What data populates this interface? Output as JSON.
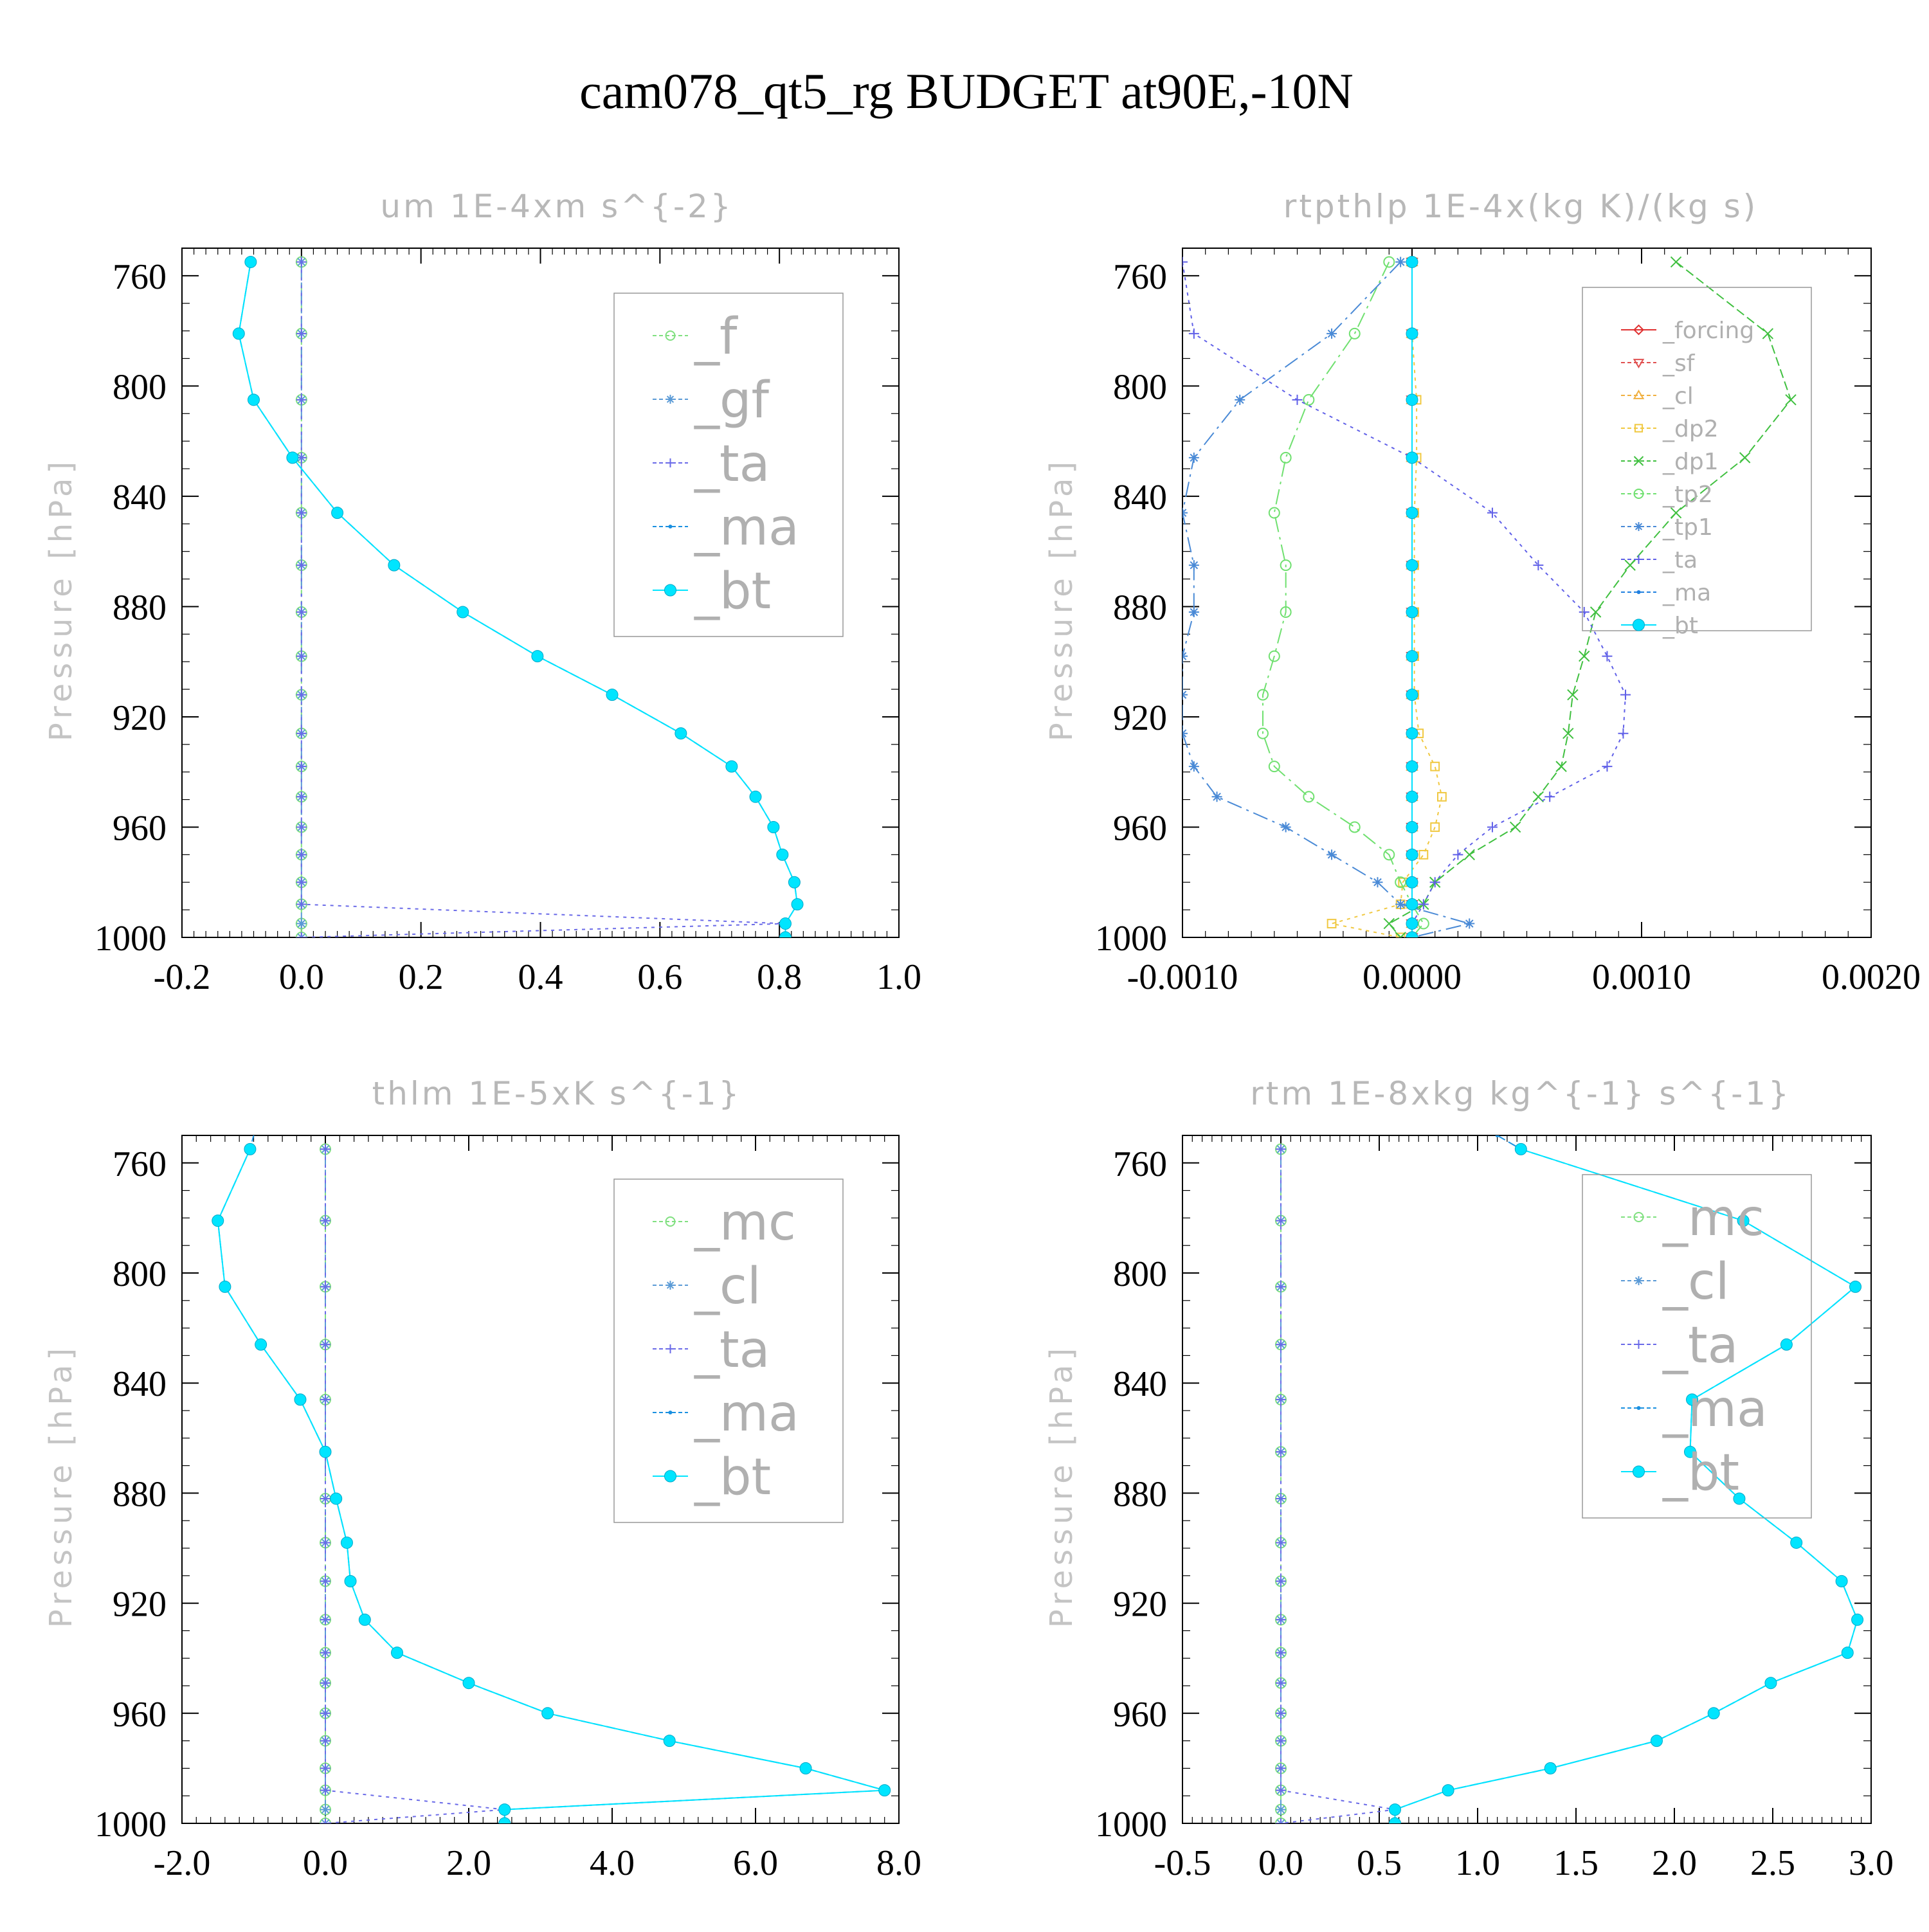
{
  "title": "cam078_qt5_rg  BUDGET at90E,-10N",
  "chart_data": [
    {
      "type": "line",
      "title": "um  1E-4xm s^{-2}",
      "ylabel": "Pressure [hPa]",
      "xlabel": "",
      "xlim": [
        -0.2,
        1.0
      ],
      "ylim": [
        1000,
        750
      ],
      "y_reversed": true,
      "x_ticks": [
        -0.2,
        0.0,
        0.2,
        0.4,
        0.6,
        0.8,
        1.0
      ],
      "x_tick_labels": [
        "-0.2",
        "0.0",
        "0.2",
        "0.4",
        "0.6",
        "0.8",
        "1.0"
      ],
      "y_ticks": [
        760,
        800,
        840,
        880,
        920,
        960,
        1000
      ],
      "y_tick_labels": [
        "760",
        "800",
        "840",
        "880",
        "920",
        "960",
        "1000"
      ],
      "legend_position": "top-right",
      "pressure": [
        755,
        781,
        805,
        826,
        846,
        865,
        882,
        898,
        912,
        926,
        938,
        949,
        960,
        970,
        980,
        988,
        995,
        1000
      ],
      "series": [
        {
          "name": "_f",
          "color": "#80e080",
          "marker": "circle-open",
          "dash": "10 7",
          "values": [
            0,
            0,
            0,
            0,
            0,
            0,
            0,
            0,
            0,
            0,
            0,
            0,
            0,
            0,
            0,
            0,
            0,
            0
          ]
        },
        {
          "name": "_gf",
          "color": "#5a9ad6",
          "marker": "asterisk",
          "dash": "24 8 4 8",
          "values": [
            0,
            0,
            0,
            0,
            0,
            0,
            0,
            0,
            0,
            0,
            0,
            0,
            0,
            0,
            0,
            0,
            0,
            0
          ]
        },
        {
          "name": "_ta",
          "color": "#6a6ae8",
          "marker": "plus",
          "dash": "5 7",
          "values": [
            0,
            0,
            0,
            0,
            0,
            0,
            0,
            0,
            0,
            0,
            0,
            0,
            0,
            0,
            0,
            0,
            0.81,
            0
          ]
        },
        {
          "name": "_ma",
          "color": "#1a90e0",
          "marker": "dot",
          "dash": "14 6",
          "values": [
            -0.085,
            -0.105,
            -0.08,
            -0.015,
            0.06,
            0.155,
            0.27,
            0.395,
            0.52,
            0.635,
            0.72,
            0.76,
            0.79,
            0.805,
            0.825,
            0.83,
            0.81,
            0.81
          ]
        },
        {
          "name": "_bt",
          "color": "#00e5ff",
          "marker": "filled-circle",
          "dash": "",
          "values": [
            -0.085,
            -0.105,
            -0.08,
            -0.015,
            0.06,
            0.155,
            0.27,
            0.395,
            0.52,
            0.635,
            0.72,
            0.76,
            0.79,
            0.805,
            0.825,
            0.83,
            0.81,
            0.81
          ]
        }
      ]
    },
    {
      "type": "line",
      "title": "rtpthlp  1E-4x(kg K)/(kg s)",
      "ylabel": "Pressure [hPa]",
      "xlabel": "",
      "xlim": [
        -0.001,
        0.002
      ],
      "ylim": [
        1000,
        750
      ],
      "y_reversed": true,
      "x_ticks": [
        -0.001,
        0.0,
        0.001,
        0.002
      ],
      "x_tick_labels": [
        "-0.0010",
        "0.0000",
        "0.0010",
        "0.0020"
      ],
      "y_ticks": [
        760,
        800,
        840,
        880,
        920,
        960,
        1000
      ],
      "y_tick_labels": [
        "760",
        "800",
        "840",
        "880",
        "920",
        "960",
        "1000"
      ],
      "legend_position": "top-right",
      "pressure": [
        755,
        781,
        805,
        826,
        846,
        865,
        882,
        898,
        912,
        926,
        938,
        949,
        960,
        970,
        980,
        988,
        995,
        1000
      ],
      "series": [
        {
          "name": "_forcing",
          "color": "#e03030",
          "marker": "diamond-open",
          "dash": "",
          "values": [
            0,
            0,
            0,
            0,
            0,
            0,
            0,
            0,
            0,
            0,
            0,
            0,
            0,
            0,
            0,
            0,
            0,
            0
          ]
        },
        {
          "name": "_sf",
          "color": "#e05050",
          "marker": "triangle-down",
          "dash": "10 7",
          "values": [
            0,
            0,
            0,
            0,
            0,
            0,
            0,
            0,
            0,
            0,
            0,
            0,
            0,
            0,
            0,
            0,
            0,
            0
          ]
        },
        {
          "name": "_cl",
          "color": "#f0b040",
          "marker": "triangle-up",
          "dash": "24 8 4 8",
          "values": [
            0,
            0,
            0,
            0,
            0,
            0,
            0,
            0,
            0,
            0,
            0,
            0,
            0,
            0,
            0,
            0,
            0,
            0
          ]
        },
        {
          "name": "_dp2",
          "color": "#f0c840",
          "marker": "square-open",
          "dash": "5 7",
          "values": [
            0,
            0,
            2e-05,
            2e-05,
            1e-05,
            1e-05,
            1e-05,
            1e-05,
            1e-05,
            3e-05,
            0.0001,
            0.00013,
            0.0001,
            5e-05,
            -4e-05,
            -5e-05,
            -0.00035,
            -5e-05
          ]
        },
        {
          "name": "_dp1",
          "color": "#40c040",
          "marker": "x",
          "dash": "14 6",
          "values": [
            0.00115,
            0.00155,
            0.00165,
            0.00145,
            0.00115,
            0.00095,
            0.0008,
            0.00075,
            0.0007,
            0.00068,
            0.00065,
            0.00055,
            0.00045,
            0.00025,
            0.0001,
            5e-05,
            -0.0001,
            -5e-05
          ]
        },
        {
          "name": "_tp2",
          "color": "#70e070",
          "marker": "circle-open",
          "dash": "24 8 4 8",
          "values": [
            -0.0001,
            -0.00025,
            -0.00045,
            -0.00055,
            -0.0006,
            -0.00055,
            -0.00055,
            -0.0006,
            -0.00065,
            -0.00065,
            -0.0006,
            -0.00045,
            -0.00025,
            -0.0001,
            -5e-05,
            0,
            5e-05,
            0
          ]
        },
        {
          "name": "_tp1",
          "color": "#4a8ad6",
          "marker": "asterisk",
          "dash": "24 8 4 8",
          "values": [
            -5e-05,
            -0.00035,
            -0.00075,
            -0.00095,
            -0.001,
            -0.00095,
            -0.00095,
            -0.001,
            -0.001,
            -0.001,
            -0.00095,
            -0.00085,
            -0.00055,
            -0.00035,
            -0.00015,
            -5e-05,
            0.00025,
            0
          ]
        },
        {
          "name": "_ta",
          "color": "#6060e8",
          "marker": "plus",
          "dash": "5 7",
          "values": [
            -0.001,
            -0.00095,
            -0.0005,
            0,
            0.00035,
            0.00055,
            0.00075,
            0.00085,
            0.00093,
            0.00092,
            0.00085,
            0.0006,
            0.00035,
            0.0002,
            0.0001,
            5e-05,
            0,
            0
          ]
        },
        {
          "name": "_ma",
          "color": "#2080e0",
          "marker": "dot",
          "dash": "14 6",
          "values": [
            0,
            0,
            0,
            0,
            0,
            0,
            0,
            0,
            0,
            0,
            0,
            0,
            0,
            0,
            0,
            0,
            0,
            0
          ]
        },
        {
          "name": "_bt",
          "color": "#00e0ff",
          "marker": "filled-circle",
          "dash": "",
          "values": [
            0,
            0,
            0,
            0,
            0,
            0,
            0,
            0,
            0,
            0,
            0,
            0,
            0,
            0,
            0,
            0,
            0,
            0
          ]
        }
      ]
    },
    {
      "type": "line",
      "title": "thlm  1E-5xK s^{-1}",
      "ylabel": "Pressure [hPa]",
      "xlabel": "",
      "xlim": [
        -2.0,
        8.0
      ],
      "ylim": [
        1000,
        750
      ],
      "y_reversed": true,
      "x_ticks": [
        -2.0,
        0.0,
        2.0,
        4.0,
        6.0,
        8.0
      ],
      "x_tick_labels": [
        "-2.0",
        "0.0",
        "2.0",
        "4.0",
        "6.0",
        "8.0"
      ],
      "y_ticks": [
        760,
        800,
        840,
        880,
        920,
        960,
        1000
      ],
      "y_tick_labels": [
        "760",
        "800",
        "840",
        "880",
        "920",
        "960",
        "1000"
      ],
      "legend_position": "top-right",
      "pressure": [
        740,
        755,
        781,
        805,
        826,
        846,
        865,
        882,
        898,
        912,
        926,
        938,
        949,
        960,
        970,
        980,
        988,
        995,
        1000
      ],
      "series": [
        {
          "name": "_mc",
          "color": "#80e080",
          "marker": "circle-open",
          "dash": "10 7",
          "values": [
            null,
            0,
            0,
            0,
            0,
            0,
            0,
            0,
            0,
            0,
            0,
            0,
            0,
            0,
            0,
            0,
            0,
            0,
            0
          ]
        },
        {
          "name": "_cl",
          "color": "#5a9ad6",
          "marker": "asterisk",
          "dash": "24 8 4 8",
          "values": [
            null,
            0,
            0,
            0,
            0,
            0,
            0,
            0,
            0,
            0,
            0,
            0,
            0,
            0,
            0,
            0,
            0,
            0,
            0
          ]
        },
        {
          "name": "_ta",
          "color": "#6a6ae8",
          "marker": "plus",
          "dash": "5 7",
          "values": [
            null,
            0,
            0,
            0,
            0,
            0,
            0,
            0,
            0,
            0,
            0,
            0,
            0,
            0,
            0,
            0,
            0,
            2.5,
            0
          ]
        },
        {
          "name": "_ma",
          "color": "#1a90e0",
          "marker": "dot",
          "dash": "14 6",
          "values": [
            -0.9,
            -1.05,
            -1.5,
            -1.4,
            -0.9,
            -0.35,
            0,
            0.15,
            0.3,
            0.35,
            0.55,
            1.0,
            2.0,
            3.1,
            4.8,
            6.7,
            7.8,
            2.5,
            2.5
          ]
        },
        {
          "name": "_bt",
          "color": "#00e5ff",
          "marker": "filled-circle",
          "dash": "",
          "values": [
            null,
            -1.05,
            -1.5,
            -1.4,
            -0.9,
            -0.35,
            0,
            0.15,
            0.3,
            0.35,
            0.55,
            1.0,
            2.0,
            3.1,
            4.8,
            6.7,
            7.8,
            2.5,
            2.5
          ]
        }
      ]
    },
    {
      "type": "line",
      "title": "rtm  1E-8xkg kg^{-1} s^{-1}",
      "ylabel": "Pressure [hPa]",
      "xlabel": "",
      "xlim": [
        -0.5,
        3.0
      ],
      "ylim": [
        1000,
        750
      ],
      "y_reversed": true,
      "x_ticks": [
        -0.5,
        0.0,
        0.5,
        1.0,
        1.5,
        2.0,
        2.5,
        3.0
      ],
      "x_tick_labels": [
        "-0.5",
        "0.0",
        "0.5",
        "1.0",
        "1.5",
        "2.0",
        "2.5",
        "3.0"
      ],
      "y_ticks": [
        760,
        800,
        840,
        880,
        920,
        960,
        1000
      ],
      "y_tick_labels": [
        "760",
        "800",
        "840",
        "880",
        "920",
        "960",
        "1000"
      ],
      "legend_position": "top-right",
      "pressure": [
        750,
        755,
        781,
        805,
        826,
        846,
        865,
        882,
        898,
        912,
        926,
        938,
        949,
        960,
        970,
        980,
        988,
        995,
        1000
      ],
      "series": [
        {
          "name": "_mc",
          "color": "#80e080",
          "marker": "circle-open",
          "dash": "10 7",
          "values": [
            null,
            0,
            0,
            0,
            0,
            0,
            0,
            0,
            0,
            0,
            0,
            0,
            0,
            0,
            0,
            0,
            0,
            0,
            0
          ]
        },
        {
          "name": "_cl",
          "color": "#5a9ad6",
          "marker": "asterisk",
          "dash": "24 8 4 8",
          "values": [
            null,
            0,
            0,
            0,
            0,
            0,
            0,
            0,
            0,
            0,
            0,
            0,
            0,
            0,
            0,
            0,
            0,
            0,
            0
          ]
        },
        {
          "name": "_ta",
          "color": "#6a6ae8",
          "marker": "plus",
          "dash": "5 7",
          "values": [
            null,
            0,
            0,
            0,
            0,
            0,
            0,
            0,
            0,
            0,
            0,
            0,
            0,
            0,
            0,
            0,
            0,
            0.58,
            0
          ]
        },
        {
          "name": "_ma",
          "color": "#1a90e0",
          "marker": "dot",
          "dash": "14 6",
          "values": [
            1.1,
            1.22,
            2.35,
            2.92,
            2.57,
            2.09,
            2.08,
            2.33,
            2.62,
            2.85,
            2.93,
            2.88,
            2.49,
            2.2,
            1.91,
            1.37,
            0.85,
            0.58,
            0.58
          ]
        },
        {
          "name": "_bt",
          "color": "#00e5ff",
          "marker": "filled-circle",
          "dash": "",
          "values": [
            null,
            1.22,
            2.35,
            2.92,
            2.57,
            2.09,
            2.08,
            2.33,
            2.62,
            2.85,
            2.93,
            2.88,
            2.49,
            2.2,
            1.91,
            1.37,
            0.85,
            0.58,
            0.58
          ]
        }
      ]
    }
  ]
}
